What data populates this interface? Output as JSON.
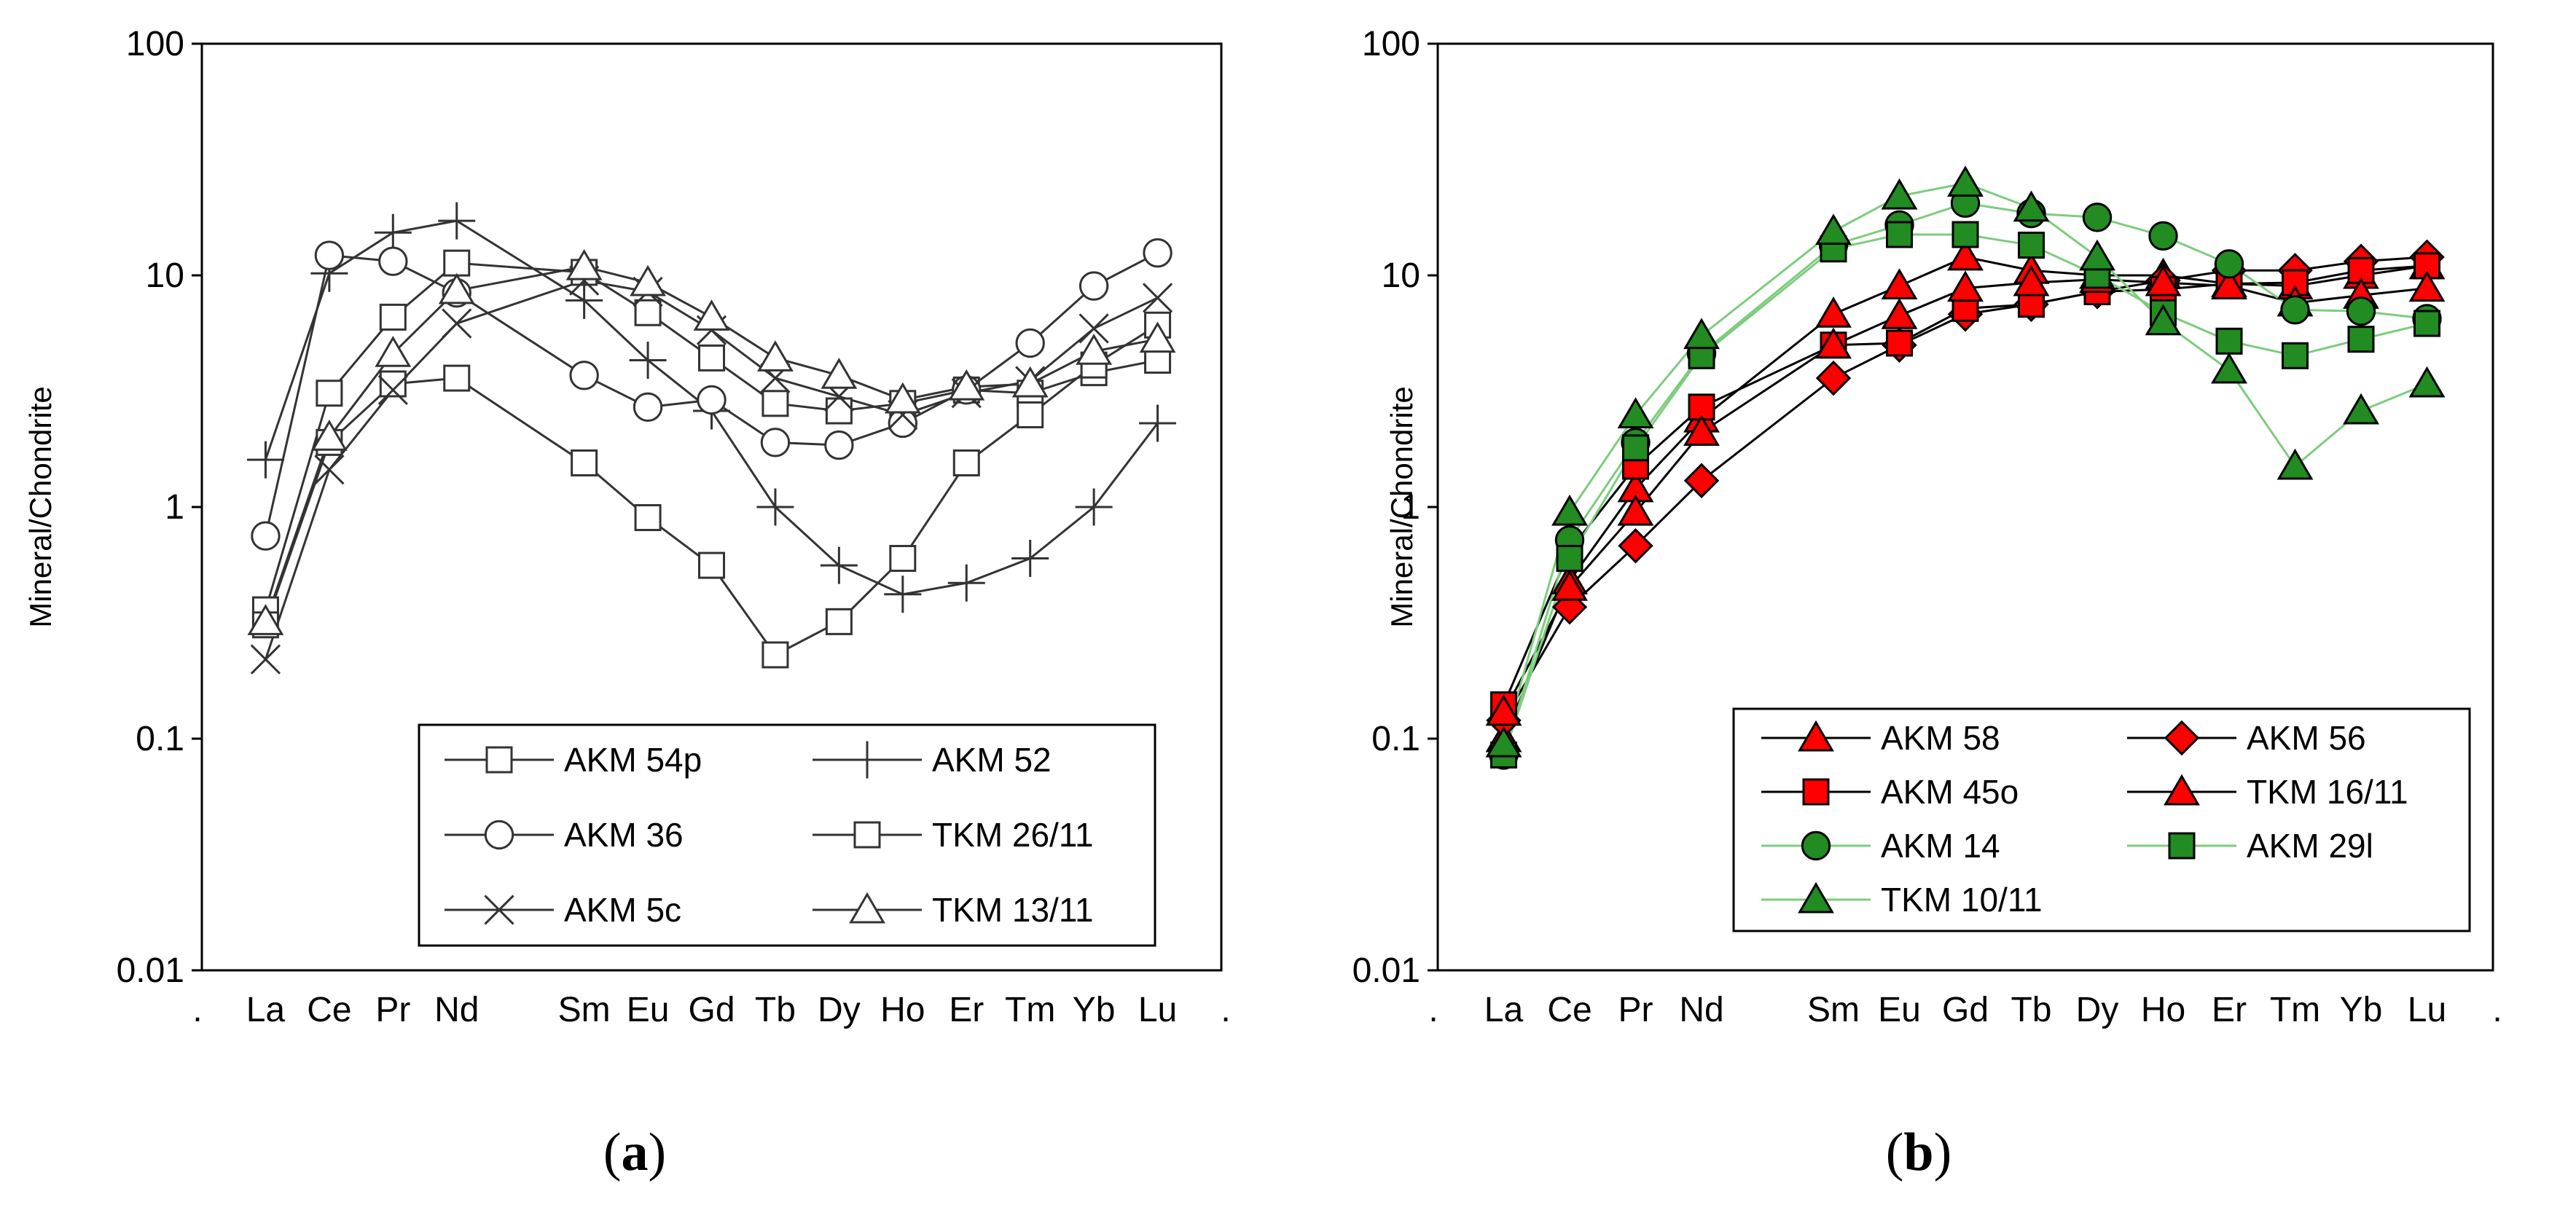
{
  "chart_data": [
    {
      "type": "line",
      "panel_label": "a",
      "log_y": true,
      "ylim": [
        0.01,
        100
      ],
      "y_ticks": [
        "0.01",
        "0.1",
        "1",
        "10",
        "100"
      ],
      "ylabel": "Mineral/Chondrite",
      "xlabel": "",
      "x_tick_labels": [
        "La",
        "Ce",
        "Pr",
        "Nd",
        "Sm",
        "Eu",
        "Gd",
        "Tb",
        "Dy",
        "Ho",
        "Er",
        "Tm",
        "Yb",
        "Lu"
      ],
      "x_positions": [
        1,
        2,
        3,
        4,
        6,
        7,
        8,
        9,
        10,
        11,
        12,
        13,
        14,
        15
      ],
      "xlim": [
        0,
        16
      ],
      "edge_marks": [
        ".",
        "."
      ],
      "legend_position": "bottom-right",
      "series": [
        {
          "name": "AKM 54p",
          "marker": "square-open",
          "color": "#333333",
          "values": [
            0.36,
            3.1,
            6.6,
            11.3,
            10.3,
            6.9,
            4.4,
            2.8,
            2.6,
            2.8,
            3.2,
            3.1,
            3.8,
            4.3
          ]
        },
        {
          "name": "AKM 52",
          "marker": "plus",
          "color": "#333333",
          "values": [
            1.6,
            10.2,
            15.3,
            17.2,
            7.8,
            4.3,
            2.6,
            1.0,
            0.56,
            0.42,
            0.47,
            0.6,
            1.0,
            2.3
          ]
        },
        {
          "name": "AKM 36",
          "marker": "circle-open",
          "color": "#333333",
          "values": [
            0.75,
            12.2,
            11.5,
            8.4,
            3.7,
            2.7,
            2.9,
            1.9,
            1.85,
            2.3,
            3.2,
            5.1,
            9.0,
            12.5
          ]
        },
        {
          "name": "TKM 26/11",
          "marker": "square-open",
          "color": "#333333",
          "values": [
            0.31,
            1.9,
            3.4,
            3.6,
            1.55,
            0.9,
            0.56,
            0.23,
            0.32,
            0.6,
            1.55,
            2.5,
            4.1,
            6.1
          ]
        },
        {
          "name": "AKM 5c",
          "marker": "x",
          "color": "#333333",
          "values": [
            0.22,
            1.45,
            3.2,
            6.2,
            9.5,
            8.5,
            5.8,
            3.6,
            3.0,
            2.5,
            3.1,
            3.5,
            5.9,
            8.0
          ]
        },
        {
          "name": "TKM 13/11",
          "marker": "triangle-open",
          "color": "#333333",
          "values": [
            0.32,
            2.0,
            4.6,
            8.6,
            10.9,
            9.3,
            6.6,
            4.4,
            3.7,
            2.9,
            3.3,
            3.4,
            4.7,
            5.3
          ]
        }
      ]
    },
    {
      "type": "line",
      "panel_label": "b",
      "log_y": true,
      "ylim": [
        0.01,
        100
      ],
      "y_ticks": [
        "0.01",
        "0.1",
        "1",
        "10",
        "100"
      ],
      "ylabel": "Mineral/Chondrite",
      "xlabel": "",
      "x_tick_labels": [
        "La",
        "Ce",
        "Pr",
        "Nd",
        "Sm",
        "Eu",
        "Gd",
        "Tb",
        "Dy",
        "Ho",
        "Er",
        "Tm",
        "Yb",
        "Lu"
      ],
      "x_positions": [
        1,
        2,
        3,
        4,
        6,
        7,
        8,
        9,
        10,
        11,
        12,
        13,
        14,
        15
      ],
      "xlim": [
        0,
        16
      ],
      "edge_marks": [
        ".",
        "."
      ],
      "legend_position": "bottom-right",
      "series": [
        {
          "name": "AKM 58",
          "marker": "triangle-filled",
          "color": "#ff0000",
          "line_color": "#000000",
          "values": [
            0.1,
            0.48,
            1.2,
            2.4,
            6.8,
            9.0,
            12.0,
            10.5,
            10.0,
            10.0,
            9.2,
            9.0,
            10.0,
            11.0
          ]
        },
        {
          "name": "AKM 56",
          "marker": "diamond-filled",
          "color": "#ff0000",
          "line_color": "#000000",
          "values": [
            0.12,
            0.37,
            0.68,
            1.3,
            3.6,
            5.0,
            6.8,
            7.5,
            8.5,
            9.5,
            10.5,
            10.5,
            11.5,
            12.0
          ]
        },
        {
          "name": "AKM 45o",
          "marker": "square-filled",
          "color": "#ff0000",
          "line_color": "#000000",
          "values": [
            0.14,
            0.65,
            1.5,
            2.7,
            5.0,
            5.1,
            7.2,
            7.5,
            8.5,
            8.7,
            9.2,
            9.3,
            10.5,
            11.0
          ]
        },
        {
          "name": "TKM 16/11",
          "marker": "triangle-filled",
          "color": "#ff0000",
          "line_color": "#000000",
          "values": [
            0.13,
            0.45,
            0.95,
            2.1,
            5.0,
            6.7,
            8.8,
            9.3,
            9.6,
            9.3,
            9.0,
            7.6,
            8.2,
            8.8
          ]
        },
        {
          "name": "AKM 14",
          "marker": "circle-filled",
          "color": "#228b22",
          "line_color": "#7ccd7c",
          "values": [
            0.085,
            0.72,
            1.9,
            4.6,
            13.5,
            16.5,
            20.5,
            18.5,
            17.8,
            14.8,
            11.2,
            7.1,
            7.0,
            6.5
          ]
        },
        {
          "name": "AKM 29l",
          "marker": "square-filled",
          "color": "#228b22",
          "line_color": "#7ccd7c",
          "values": [
            0.085,
            0.6,
            1.8,
            4.5,
            13.0,
            15.0,
            15.0,
            13.5,
            10.0,
            6.9,
            5.2,
            4.5,
            5.3,
            6.2
          ]
        },
        {
          "name": "TKM 10/11",
          "marker": "triangle-filled",
          "color": "#228b22",
          "line_color": "#7ccd7c",
          "values": [
            0.095,
            0.95,
            2.5,
            5.5,
            15.5,
            22.0,
            25.0,
            19.5,
            12.0,
            6.3,
            3.9,
            1.5,
            2.6,
            3.4
          ]
        }
      ]
    }
  ],
  "captions": [
    "(a)",
    "(b)"
  ]
}
